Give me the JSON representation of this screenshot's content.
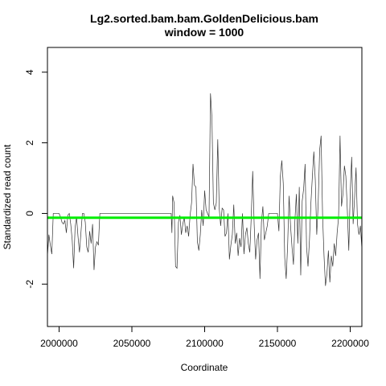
{
  "chart_data": {
    "type": "line",
    "title": "Lg2.sorted.bam.bam.GoldenDelicious.bam",
    "subtitle": "window = 1000",
    "xlabel": "Coordinate",
    "ylabel": "Standardized read count",
    "xlim": [
      1992000,
      2208000
    ],
    "ylim": [
      -3.2,
      4.7
    ],
    "xticks": [
      2000000,
      2050000,
      2100000,
      2150000,
      2200000
    ],
    "xtick_labels": [
      "2000000",
      "2050000",
      "2100000",
      "2150000",
      "2200000"
    ],
    "yticks": [
      -2,
      0,
      2,
      4
    ],
    "ytick_labels": [
      "-2",
      "0",
      "2",
      "4"
    ],
    "grid": false,
    "reference_line": {
      "y": -0.12,
      "color": "#00ee00"
    },
    "series": [
      {
        "color": "#333333",
        "points": [
          [
            1992000,
            -1.2
          ],
          [
            1993000,
            -0.6
          ],
          [
            1994000,
            -0.9
          ],
          [
            1995000,
            -1.15
          ],
          [
            1996000,
            0.0
          ],
          [
            1997000,
            0.0
          ],
          [
            1998000,
            0.0
          ],
          [
            1999000,
            0.0
          ],
          [
            2000000,
            0.0
          ],
          [
            2001000,
            -0.1
          ],
          [
            2002000,
            -0.25
          ],
          [
            2003000,
            -0.3
          ],
          [
            2004000,
            -0.2
          ],
          [
            2005000,
            -0.55
          ],
          [
            2006000,
            -0.05
          ],
          [
            2007000,
            0.0
          ],
          [
            2008000,
            -0.3
          ],
          [
            2009000,
            -0.75
          ],
          [
            2010000,
            -1.55
          ],
          [
            2011000,
            -0.4
          ],
          [
            2012000,
            -0.1
          ],
          [
            2013000,
            -0.65
          ],
          [
            2014000,
            -1.1
          ],
          [
            2015000,
            -0.55
          ],
          [
            2016000,
            0.0
          ],
          [
            2017000,
            0.0
          ],
          [
            2018000,
            -0.25
          ],
          [
            2019000,
            -0.95
          ],
          [
            2020000,
            -1.1
          ],
          [
            2021000,
            -0.5
          ],
          [
            2022000,
            -0.85
          ],
          [
            2023000,
            -0.3
          ],
          [
            2024000,
            -1.6
          ],
          [
            2025000,
            -0.95
          ],
          [
            2026000,
            -0.8
          ],
          [
            2027000,
            -0.9
          ],
          [
            2028000,
            0.0
          ],
          [
            2030000,
            0.0
          ],
          [
            2040000,
            0.0
          ],
          [
            2050000,
            0.0
          ],
          [
            2060000,
            0.0
          ],
          [
            2070000,
            0.0
          ],
          [
            2077000,
            0.0
          ],
          [
            2077500,
            -0.55
          ],
          [
            2078000,
            0.5
          ],
          [
            2079000,
            0.3
          ],
          [
            2080000,
            -1.5
          ],
          [
            2081000,
            -1.55
          ],
          [
            2082000,
            -0.25
          ],
          [
            2083000,
            -0.05
          ],
          [
            2084000,
            -0.6
          ],
          [
            2085000,
            -0.3
          ],
          [
            2086000,
            -0.1
          ],
          [
            2087000,
            -0.55
          ],
          [
            2088000,
            -0.35
          ],
          [
            2089000,
            -0.65
          ],
          [
            2090000,
            -0.05
          ],
          [
            2091000,
            0.3
          ],
          [
            2092000,
            1.4
          ],
          [
            2093000,
            0.8
          ],
          [
            2094000,
            0.75
          ],
          [
            2095000,
            -0.8
          ],
          [
            2096000,
            -1.05
          ],
          [
            2097000,
            -0.6
          ],
          [
            2098000,
            0.1
          ],
          [
            2099000,
            -0.35
          ],
          [
            2100000,
            0.65
          ],
          [
            2101000,
            0.1
          ],
          [
            2102000,
            0.0
          ],
          [
            2103000,
            -0.1
          ],
          [
            2104000,
            3.4
          ],
          [
            2105000,
            2.7
          ],
          [
            2106000,
            0.3
          ],
          [
            2107000,
            0.1
          ],
          [
            2108000,
            0.3
          ],
          [
            2109000,
            2.1
          ],
          [
            2110000,
            0.15
          ],
          [
            2111000,
            -0.35
          ],
          [
            2112000,
            0.15
          ],
          [
            2113000,
            0.1
          ],
          [
            2114000,
            -0.65
          ],
          [
            2115000,
            -0.55
          ],
          [
            2116000,
            0.0
          ],
          [
            2117000,
            -1.3
          ],
          [
            2118000,
            -0.9
          ],
          [
            2119000,
            -0.6
          ],
          [
            2120000,
            0.25
          ],
          [
            2121000,
            -0.85
          ],
          [
            2122000,
            -0.55
          ],
          [
            2123000,
            -1.2
          ],
          [
            2124000,
            -0.7
          ],
          [
            2125000,
            -0.95
          ],
          [
            2126000,
            0.0
          ],
          [
            2127000,
            -1.15
          ],
          [
            2128000,
            -0.6
          ],
          [
            2129000,
            -0.4
          ],
          [
            2130000,
            -0.85
          ],
          [
            2131000,
            -1.1
          ],
          [
            2132000,
            -0.1
          ],
          [
            2133000,
            1.2
          ],
          [
            2134000,
            -0.3
          ],
          [
            2135000,
            -1.3
          ],
          [
            2136000,
            -0.75
          ],
          [
            2137000,
            -0.55
          ],
          [
            2138000,
            -1.85
          ],
          [
            2139000,
            -0.25
          ],
          [
            2140000,
            0.2
          ],
          [
            2141000,
            -0.75
          ],
          [
            2142000,
            -0.55
          ],
          [
            2143000,
            -0.35
          ],
          [
            2144000,
            0.0
          ],
          [
            2150000,
            0.0
          ],
          [
            2151000,
            -0.5
          ],
          [
            2152000,
            1.05
          ],
          [
            2153000,
            1.5
          ],
          [
            2154000,
            0.85
          ],
          [
            2155000,
            -1.25
          ],
          [
            2156000,
            -1.85
          ],
          [
            2157000,
            -0.9
          ],
          [
            2158000,
            0.5
          ],
          [
            2159000,
            -0.35
          ],
          [
            2160000,
            -0.95
          ],
          [
            2161000,
            -1.45
          ],
          [
            2162000,
            -0.2
          ],
          [
            2163000,
            0.55
          ],
          [
            2164000,
            -0.85
          ],
          [
            2165000,
            0.75
          ],
          [
            2166000,
            -1.75
          ],
          [
            2167000,
            0.35
          ],
          [
            2168000,
            0.7
          ],
          [
            2169000,
            1.4
          ],
          [
            2170000,
            -0.95
          ],
          [
            2171000,
            -1.5
          ],
          [
            2172000,
            -0.75
          ],
          [
            2173000,
            0.3
          ],
          [
            2174000,
            1.05
          ],
          [
            2175000,
            1.75
          ],
          [
            2176000,
            0.95
          ],
          [
            2177000,
            -0.6
          ],
          [
            2178000,
            0.3
          ],
          [
            2179000,
            1.8
          ],
          [
            2180000,
            2.2
          ],
          [
            2181000,
            -0.05
          ],
          [
            2182000,
            -1.2
          ],
          [
            2183000,
            -2.05
          ],
          [
            2184000,
            -1.7
          ],
          [
            2185000,
            -1.05
          ],
          [
            2186000,
            -1.95
          ],
          [
            2187000,
            -1.2
          ],
          [
            2188000,
            -1.5
          ],
          [
            2189000,
            -0.85
          ],
          [
            2190000,
            -1.2
          ],
          [
            2191000,
            -0.55
          ],
          [
            2192000,
            -0.1
          ],
          [
            2193000,
            2.2
          ],
          [
            2194000,
            0.2
          ],
          [
            2195000,
            0.55
          ],
          [
            2196000,
            1.35
          ],
          [
            2197000,
            1.05
          ],
          [
            2198000,
            0.1
          ],
          [
            2199000,
            -1.05
          ],
          [
            2200000,
            0.6
          ],
          [
            2201000,
            1.6
          ],
          [
            2202000,
            -0.3
          ],
          [
            2203000,
            0.45
          ],
          [
            2204000,
            1.3
          ],
          [
            2205000,
            -0.3
          ],
          [
            2206000,
            -0.6
          ],
          [
            2207000,
            -0.35
          ],
          [
            2208000,
            -1.0
          ]
        ]
      }
    ]
  }
}
